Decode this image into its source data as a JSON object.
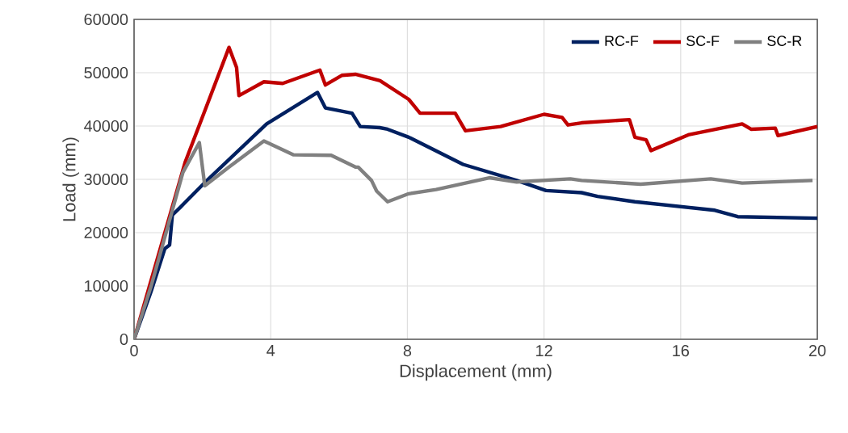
{
  "chart_data": {
    "type": "line",
    "xlabel": "Displacement (mm)",
    "ylabel": "Load (mm)",
    "xlim": [
      0,
      20
    ],
    "ylim": [
      0,
      60000
    ],
    "xticks": [
      0,
      4,
      8,
      12,
      16,
      20
    ],
    "yticks": [
      0,
      10000,
      20000,
      30000,
      40000,
      50000,
      60000
    ],
    "grid": true,
    "legend": "top right",
    "marker": "none",
    "line_style": "solid",
    "series": [
      {
        "name": "RC-F",
        "color": "#002060",
        "x": [
          0,
          0.5,
          0.9,
          1.04,
          1.12,
          1.36,
          2.07,
          3.88,
          5.37,
          5.6,
          6.38,
          6.62,
          7.19,
          7.42,
          8.04,
          9.63,
          11.2,
          12.06,
          13.1,
          13.57,
          14.66,
          17.0,
          17.67,
          20
        ],
        "values": [
          0,
          9000,
          17000,
          17700,
          23300,
          24800,
          29400,
          40400,
          46300,
          43400,
          42400,
          39900,
          39700,
          39400,
          37900,
          32800,
          29800,
          27900,
          27500,
          26800,
          25800,
          24200,
          23000,
          22700
        ]
      },
      {
        "name": "SC-F",
        "color": "#c00000",
        "x": [
          0,
          1.5,
          2.78,
          3.0,
          3.07,
          3.8,
          4.35,
          5.44,
          5.6,
          6.08,
          6.48,
          7.2,
          8.04,
          8.37,
          9.4,
          9.7,
          10.73,
          12.0,
          12.53,
          12.7,
          13.1,
          14.5,
          14.66,
          14.99,
          15.13,
          16.25,
          17.8,
          18.06,
          18.77,
          18.85,
          20
        ],
        "values": [
          0,
          33300,
          54750,
          51000,
          45700,
          48300,
          48000,
          50500,
          47700,
          49500,
          49700,
          48500,
          45000,
          42400,
          42400,
          39100,
          39900,
          42200,
          41600,
          40200,
          40600,
          41200,
          37900,
          37400,
          35400,
          38400,
          40400,
          39400,
          39600,
          38200,
          39900
        ]
      },
      {
        "name": "SC-R",
        "color": "#808080",
        "x": [
          0,
          0.5,
          1.43,
          1.91,
          2.07,
          2.78,
          3.8,
          4.67,
          5.77,
          6.48,
          6.56,
          6.95,
          7.1,
          7.42,
          8.04,
          8.84,
          10.4,
          11.2,
          12.77,
          13.1,
          14.83,
          16.88,
          17.8,
          19.86
        ],
        "values": [
          0,
          10000,
          31300,
          36900,
          28800,
          32300,
          37200,
          34600,
          34500,
          32300,
          32300,
          29800,
          27800,
          25800,
          27300,
          28100,
          30300,
          29500,
          30100,
          29800,
          29100,
          30100,
          29300,
          29800
        ]
      }
    ]
  }
}
